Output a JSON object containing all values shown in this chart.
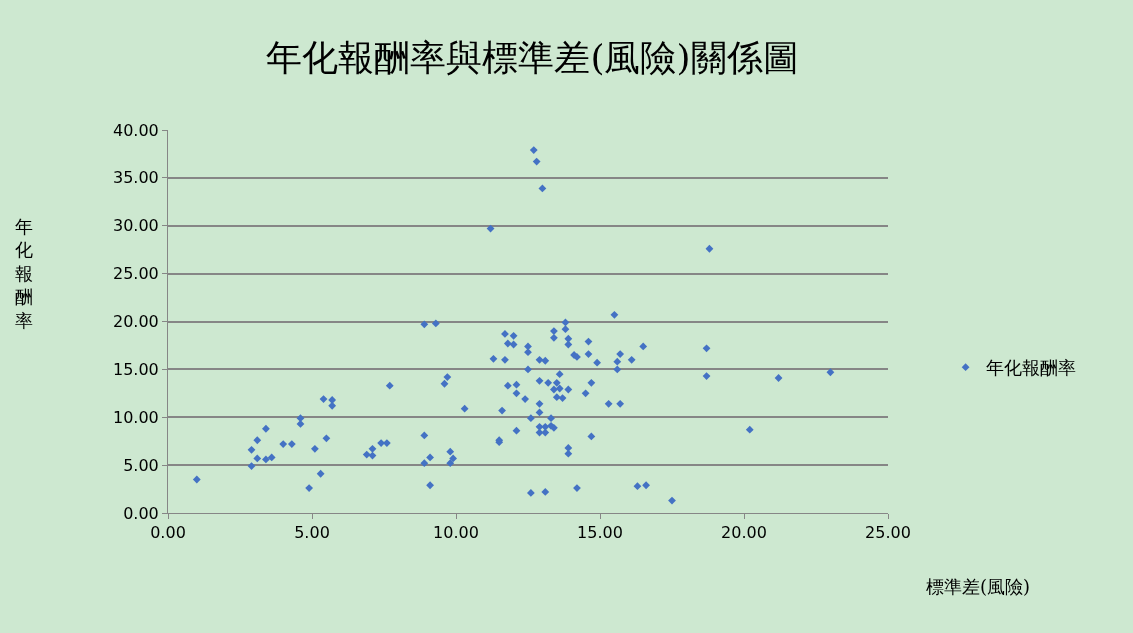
{
  "chart_data": {
    "type": "scatter",
    "title": "年化報酬率與標準差(風險)關係圖",
    "xlabel": "標準差(風險)",
    "ylabel": "年化報酬率",
    "xlim": [
      0,
      25
    ],
    "xticks": [
      {
        "value": 0,
        "label": "0.00"
      },
      {
        "value": 5,
        "label": "5.00"
      },
      {
        "value": 10,
        "label": "10.00"
      },
      {
        "value": 15,
        "label": "15.00"
      },
      {
        "value": 20,
        "label": "20.00"
      },
      {
        "value": 25,
        "label": "25.00"
      }
    ],
    "ylim": [
      0,
      40
    ],
    "yticks": [
      {
        "value": 0,
        "label": "0.00"
      },
      {
        "value": 5,
        "label": "5.00"
      },
      {
        "value": 10,
        "label": "10.00"
      },
      {
        "value": 15,
        "label": "15.00"
      },
      {
        "value": 20,
        "label": "20.00"
      },
      {
        "value": 25,
        "label": "25.00"
      },
      {
        "value": 30,
        "label": "30.00"
      },
      {
        "value": 35,
        "label": "35.00"
      },
      {
        "value": 40,
        "label": "40.00"
      }
    ],
    "grid": "y",
    "legend": "right",
    "marker": "diamond",
    "series": [
      {
        "name": "年化報酬率",
        "color": "#4472c4",
        "x": [
          1.0,
          2.9,
          2.9,
          3.1,
          3.1,
          3.4,
          3.4,
          3.6,
          4.0,
          4.3,
          4.6,
          4.6,
          4.9,
          5.1,
          5.3,
          5.5,
          5.4,
          5.7,
          5.7,
          7.7,
          6.9,
          7.1,
          7.1,
          7.4,
          7.6,
          8.9,
          9.3,
          9.7,
          9.6,
          10.3,
          8.9,
          9.1,
          8.9,
          9.1,
          9.8,
          9.9,
          9.8,
          11.2,
          12.7,
          12.8,
          13.0,
          15.5,
          18.8,
          18.7,
          18.7,
          21.2,
          23.0,
          20.2,
          17.5,
          16.3,
          16.6,
          14.2,
          12.6,
          13.1,
          13.8,
          13.8,
          13.4,
          13.4,
          11.7,
          12.0,
          11.8,
          12.0,
          13.9,
          13.9,
          14.6,
          12.5,
          12.5,
          14.1,
          14.2,
          14.6,
          15.7,
          15.6,
          15.6,
          16.1,
          16.5,
          14.9,
          11.3,
          11.7,
          12.9,
          13.1,
          12.5,
          13.6,
          11.8,
          12.1,
          12.1,
          12.9,
          13.2,
          13.5,
          13.4,
          13.6,
          13.9,
          13.5,
          13.7,
          14.7,
          14.5,
          12.4,
          11.6,
          12.9,
          12.9,
          15.3,
          15.7,
          12.6,
          13.3,
          12.1,
          12.9,
          13.1,
          13.3,
          13.4,
          12.9,
          13.1,
          11.5,
          11.5,
          14.7,
          13.9,
          13.9
        ],
        "values": [
          3.5,
          4.9,
          6.6,
          7.6,
          5.7,
          8.8,
          5.6,
          5.8,
          7.2,
          7.2,
          9.9,
          9.3,
          2.6,
          6.7,
          4.1,
          7.8,
          11.9,
          11.8,
          11.2,
          13.3,
          6.1,
          6.7,
          6.0,
          7.3,
          7.3,
          19.7,
          19.8,
          14.2,
          13.5,
          10.9,
          8.1,
          5.8,
          5.2,
          2.9,
          6.4,
          5.7,
          5.2,
          29.7,
          37.9,
          36.7,
          33.9,
          20.7,
          27.6,
          17.2,
          14.3,
          14.1,
          14.7,
          8.7,
          1.3,
          2.8,
          2.9,
          2.6,
          2.1,
          2.2,
          19.9,
          19.2,
          19.0,
          18.3,
          18.7,
          18.5,
          17.7,
          17.6,
          18.2,
          17.6,
          17.9,
          17.4,
          16.8,
          16.5,
          16.3,
          16.6,
          16.6,
          15.8,
          15.0,
          16.0,
          17.4,
          15.7,
          16.1,
          16.0,
          16.0,
          15.9,
          15.0,
          14.5,
          13.3,
          13.4,
          12.5,
          13.8,
          13.6,
          13.6,
          12.9,
          13.0,
          12.9,
          12.1,
          12.0,
          13.6,
          12.5,
          11.9,
          10.7,
          11.4,
          10.5,
          11.4,
          11.4,
          9.9,
          9.9,
          8.6,
          9.0,
          9.0,
          9.1,
          8.9,
          8.4,
          8.4,
          7.6,
          7.4,
          8.0,
          6.8,
          6.2
        ]
      }
    ]
  }
}
